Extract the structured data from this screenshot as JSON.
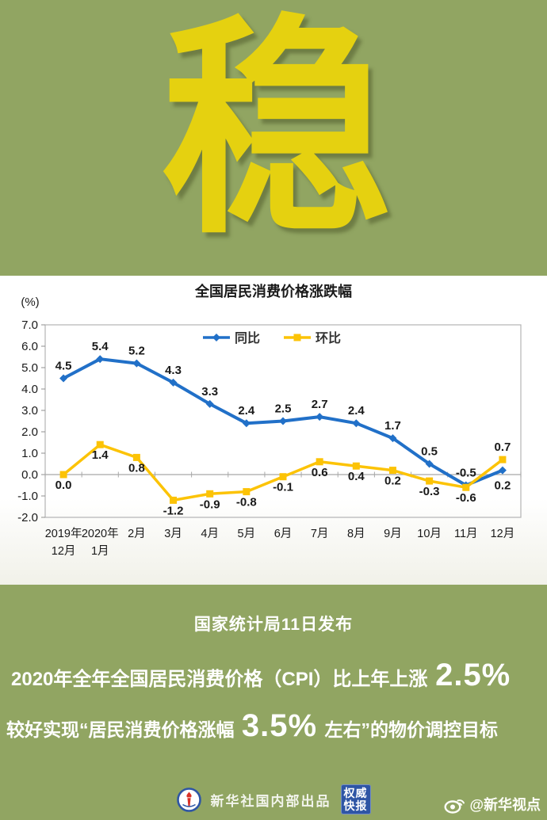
{
  "page": {
    "background": "#91a562"
  },
  "headline": {
    "char": "稳",
    "color": "#e5d110"
  },
  "chart_data": {
    "type": "line",
    "title": "全国居民消费价格涨跌幅",
    "unit_label": "(%)",
    "categories": [
      [
        "2019年",
        "12月"
      ],
      [
        "2020年",
        "1月"
      ],
      "2月",
      "3月",
      "4月",
      "5月",
      "6月",
      "7月",
      "8月",
      "9月",
      "10月",
      "11月",
      "12月"
    ],
    "series": [
      {
        "name": "同比",
        "color": "#2170c8",
        "marker": "diamond",
        "values": [
          4.5,
          5.4,
          5.2,
          4.3,
          3.3,
          2.4,
          2.5,
          2.7,
          2.4,
          1.7,
          0.5,
          -0.5,
          0.2
        ],
        "label_default": "above",
        "label_exceptions": {
          "12": "below"
        }
      },
      {
        "name": "环比",
        "color": "#fcc306",
        "marker": "square",
        "values": [
          0.0,
          1.4,
          0.8,
          -1.2,
          -0.9,
          -0.8,
          -0.1,
          0.6,
          0.4,
          0.2,
          -0.3,
          -0.6,
          0.7
        ],
        "label_default": "below",
        "label_exceptions": {
          "12": "above"
        }
      }
    ],
    "ylim": [
      -2.0,
      7.0
    ],
    "ytick_step": 1.0,
    "legend_position": "top-center",
    "zero_line": true,
    "grid": false,
    "axis_color": "#b3b3b3",
    "label_color": "#1a1a1a"
  },
  "release": {
    "text": "国家统计局11日发布"
  },
  "stats": {
    "line1": {
      "prefix": "2020年全年全国居民消费价格（CPI）比上年上涨 ",
      "highlight": "2.5%",
      "suffix": ""
    },
    "line2": {
      "prefix": "较好实现“居民消费价格涨幅 ",
      "highlight": "3.5%",
      "suffix": " 左右”的物价调控目标"
    }
  },
  "footer": {
    "producer": "新华社国内部出品",
    "badge_lines": [
      "权威",
      "快报"
    ],
    "badge_color": "#2e55a5",
    "weibo_handle": "@新华视点",
    "logo_ring_color": "#2e55a5",
    "logo_mark_color": "#d93026"
  }
}
